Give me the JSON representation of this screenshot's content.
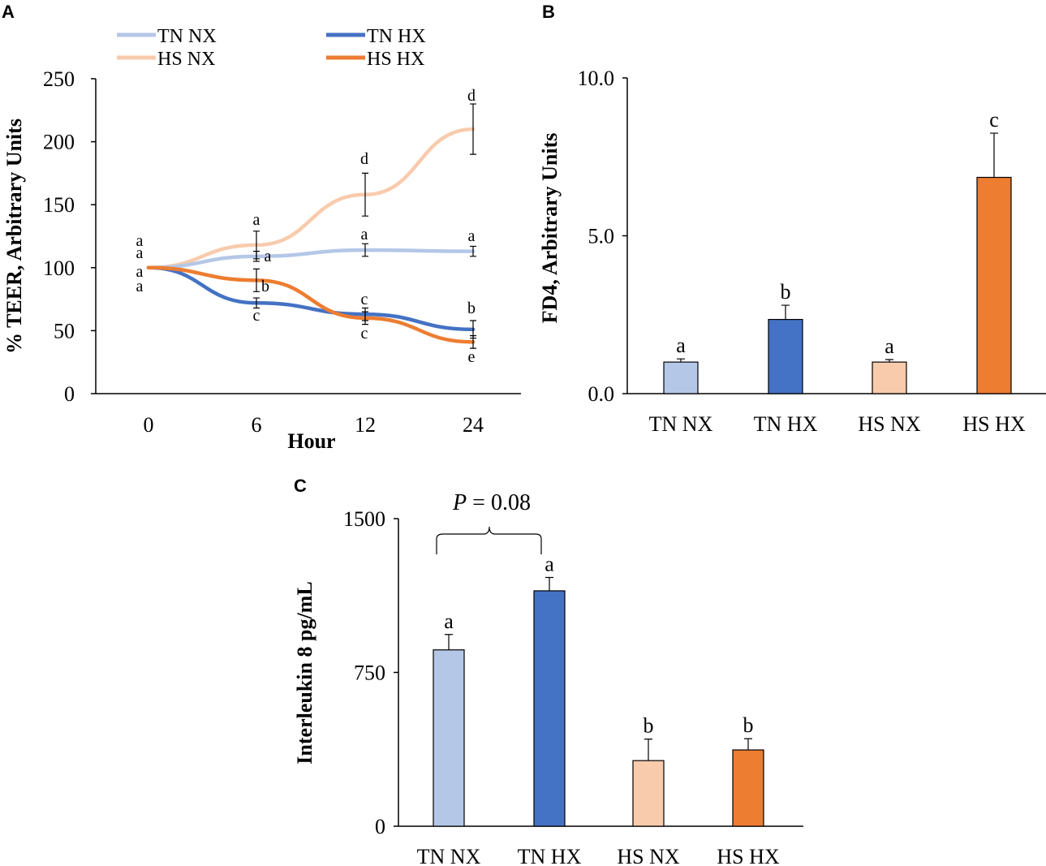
{
  "colors": {
    "tn_nx": "#b4c7e7",
    "tn_hx": "#4472c4",
    "hs_nx": "#f8cbad",
    "hs_hx": "#ed7d31",
    "axis": "#000000"
  },
  "chart_data": [
    {
      "panel": "A",
      "type": "line",
      "xlabel": "Hour",
      "ylabel": "% TEER, Arbitrary Units",
      "ylim": [
        0,
        250
      ],
      "yticks": [
        "0",
        "50",
        "100",
        "150",
        "200",
        "250"
      ],
      "categories": [
        "0",
        "6",
        "12",
        "24"
      ],
      "legend": "top",
      "series": [
        {
          "name": "TN NX",
          "key": "tn_nx",
          "values": [
            100,
            109,
            114,
            113
          ],
          "errors": [
            0,
            4,
            5,
            4
          ],
          "letters": [
            "a",
            "a",
            "a",
            "a"
          ]
        },
        {
          "name": "TN HX",
          "key": "tn_hx",
          "values": [
            100,
            72,
            63,
            51
          ],
          "errors": [
            0,
            4,
            5,
            7
          ],
          "letters": [
            "a",
            "c",
            "c",
            "b"
          ]
        },
        {
          "name": "HS NX",
          "key": "hs_nx",
          "values": [
            100,
            118,
            158,
            210
          ],
          "errors": [
            0,
            11,
            17,
            20
          ],
          "letters": [
            "a",
            "a",
            "d",
            "d"
          ]
        },
        {
          "name": "HS HX",
          "key": "hs_hx",
          "values": [
            100,
            90,
            60,
            41
          ],
          "errors": [
            0,
            9,
            5,
            5
          ],
          "letters": [
            "a",
            "b",
            "c",
            "e"
          ]
        }
      ]
    },
    {
      "panel": "B",
      "type": "bar",
      "ylabel": "FD4, Arbitrary Units",
      "ylim": [
        0,
        10
      ],
      "yticks": [
        "0.0",
        "5.0",
        "10.0"
      ],
      "categories": [
        "TN NX",
        "TN HX",
        "HS NX",
        "HS HX"
      ],
      "values": [
        1.0,
        2.35,
        1.0,
        6.85
      ],
      "errors": [
        0.1,
        0.45,
        0.08,
        1.4
      ],
      "letters": [
        "a",
        "b",
        "a",
        "c"
      ]
    },
    {
      "panel": "C",
      "type": "bar",
      "ylabel": "Interleukin 8 pg/mL",
      "ylim": [
        0,
        1500
      ],
      "yticks": [
        "0",
        "750",
        "1500"
      ],
      "categories": [
        "TN NX",
        "TN HX",
        "HS NX",
        "HS HX"
      ],
      "values": [
        860,
        1148,
        320,
        372
      ],
      "errors": [
        75,
        65,
        105,
        55
      ],
      "letters": [
        "a",
        "a",
        "b",
        "b"
      ],
      "annotation": {
        "italic": "P",
        "text": " = 0.08",
        "between": [
          0,
          1
        ]
      }
    }
  ]
}
